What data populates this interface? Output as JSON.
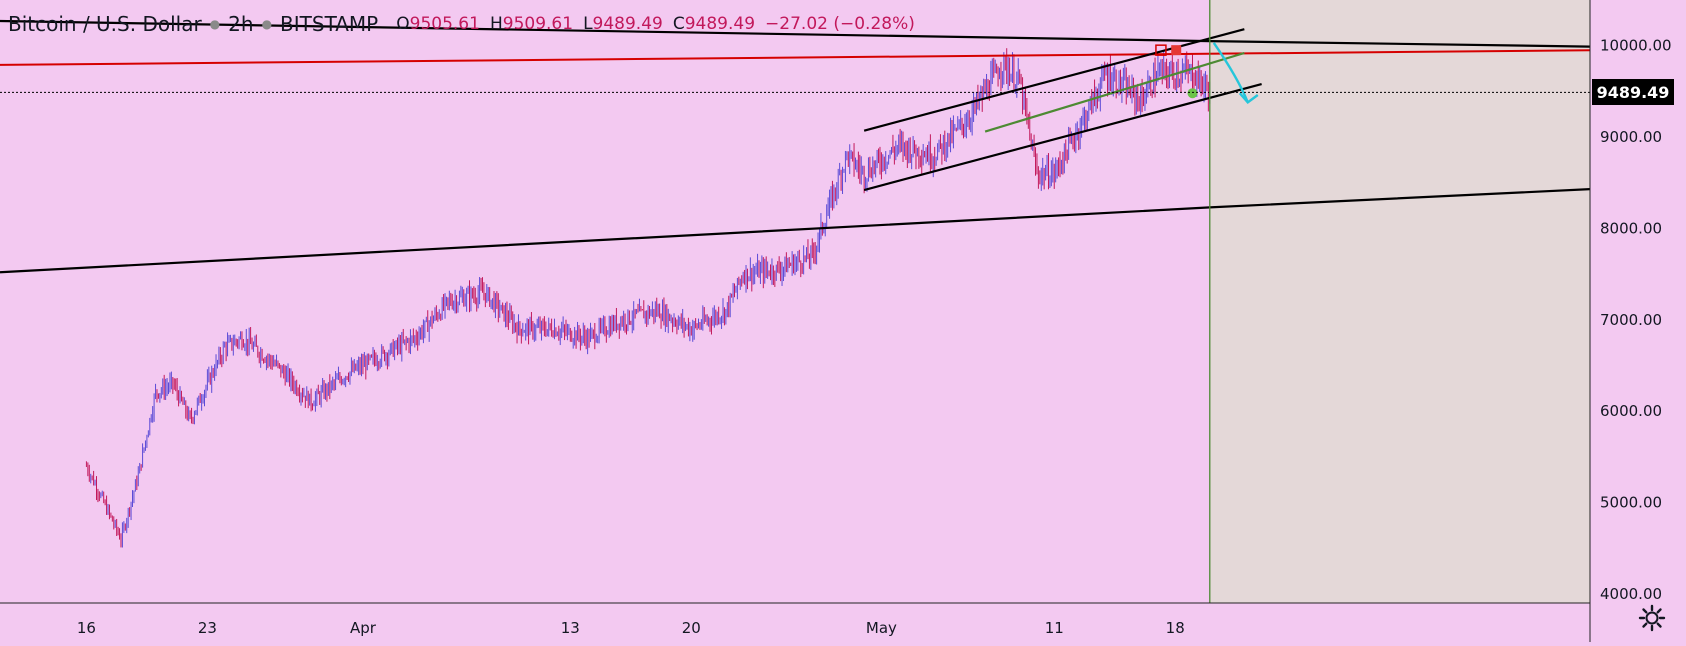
{
  "header": {
    "symbol": "Bitcoin / U.S. Dollar",
    "interval": "2h",
    "exchange": "BITSTAMP",
    "open_label": "O",
    "open": "9505.61",
    "high_label": "H",
    "high": "9509.61",
    "low_label": "L",
    "low": "9489.49",
    "close_label": "C",
    "close": "9489.49",
    "change": "−27.02 (−0.28%)"
  },
  "current_price_label": "9489.49",
  "colors": {
    "background": "#f3c9f1",
    "up": "#5b4bd6",
    "down": "#c2185b",
    "resistance": "#d50000",
    "channel": "#000000",
    "green": "#4d8a33",
    "future_zone": "#e4d8d8",
    "arrow": "#26c6da"
  },
  "chart_data": {
    "type": "candlestick",
    "ylim": [
      3900,
      10500
    ],
    "y_ticks": [
      "10000.00",
      "9000.00",
      "8000.00",
      "7000.00",
      "6000.00",
      "5000.00",
      "4000.00"
    ],
    "x_ticks": [
      "16",
      "23",
      "Apr",
      "13",
      "20",
      "May",
      "11",
      "18"
    ],
    "price_path": [
      [
        "2020-03-16",
        5400
      ],
      [
        "2020-03-17",
        5000
      ],
      [
        "2020-03-18",
        4600
      ],
      [
        "2020-03-19",
        5300
      ],
      [
        "2020-03-20",
        6200
      ],
      [
        "2020-03-21",
        6300
      ],
      [
        "2020-03-22",
        5900
      ],
      [
        "2020-03-24",
        6700
      ],
      [
        "2020-03-25",
        6800
      ],
      [
        "2020-03-27",
        6500
      ],
      [
        "2020-03-29",
        6100
      ],
      [
        "2020-03-31",
        6400
      ],
      [
        "2020-04-02",
        6600
      ],
      [
        "2020-04-04",
        6800
      ],
      [
        "2020-04-06",
        7200
      ],
      [
        "2020-04-08",
        7300
      ],
      [
        "2020-04-10",
        6900
      ],
      [
        "2020-04-12",
        6900
      ],
      [
        "2020-04-14",
        6800
      ],
      [
        "2020-04-16",
        7000
      ],
      [
        "2020-04-18",
        7100
      ],
      [
        "2020-04-20",
        6900
      ],
      [
        "2020-04-22",
        7100
      ],
      [
        "2020-04-23",
        7500
      ],
      [
        "2020-04-25",
        7550
      ],
      [
        "2020-04-27",
        7700
      ],
      [
        "2020-04-29",
        8800
      ],
      [
        "2020-04-30",
        8600
      ],
      [
        "2020-05-02",
        8900
      ],
      [
        "2020-05-04",
        8800
      ],
      [
        "2020-05-06",
        9200
      ],
      [
        "2020-05-08",
        9800
      ],
      [
        "2020-05-09",
        9600
      ],
      [
        "2020-05-10",
        8600
      ],
      [
        "2020-05-11",
        8600
      ],
      [
        "2020-05-13",
        9300
      ],
      [
        "2020-05-14",
        9700
      ],
      [
        "2020-05-16",
        9400
      ],
      [
        "2020-05-17",
        9700
      ],
      [
        "2020-05-18",
        9700
      ],
      [
        "2020-05-19",
        9700
      ],
      [
        "2020-05-20",
        9489
      ]
    ],
    "lines": [
      {
        "id": "upper-trendline",
        "points": [
          [
            "2020-03-11",
            10270
          ],
          [
            "2020-05-20",
            10050
          ],
          [
            "2020-06-11",
            9990
          ]
        ],
        "color": "#000000"
      },
      {
        "id": "red-resistance",
        "points": [
          [
            "2020-03-11",
            9790
          ],
          [
            "2020-06-11",
            9950
          ]
        ],
        "color": "#d50000"
      },
      {
        "id": "lower-support-line",
        "points": [
          [
            "2020-03-11",
            7520
          ],
          [
            "2020-05-20",
            8230
          ],
          [
            "2020-06-11",
            8430
          ]
        ],
        "color": "#000000"
      },
      {
        "id": "channel-top",
        "points": [
          [
            "2020-04-30",
            9070
          ],
          [
            "2020-05-22",
            10180
          ]
        ],
        "color": "#000000"
      },
      {
        "id": "channel-bottom",
        "points": [
          [
            "2020-04-30",
            8420
          ],
          [
            "2020-05-23",
            9580
          ]
        ],
        "color": "#000000"
      },
      {
        "id": "green-midline",
        "points": [
          [
            "2020-05-07",
            9060
          ],
          [
            "2020-05-22",
            9920
          ]
        ],
        "color": "#4d8a33"
      }
    ],
    "projection_start": "2020-05-20",
    "grid": false
  }
}
